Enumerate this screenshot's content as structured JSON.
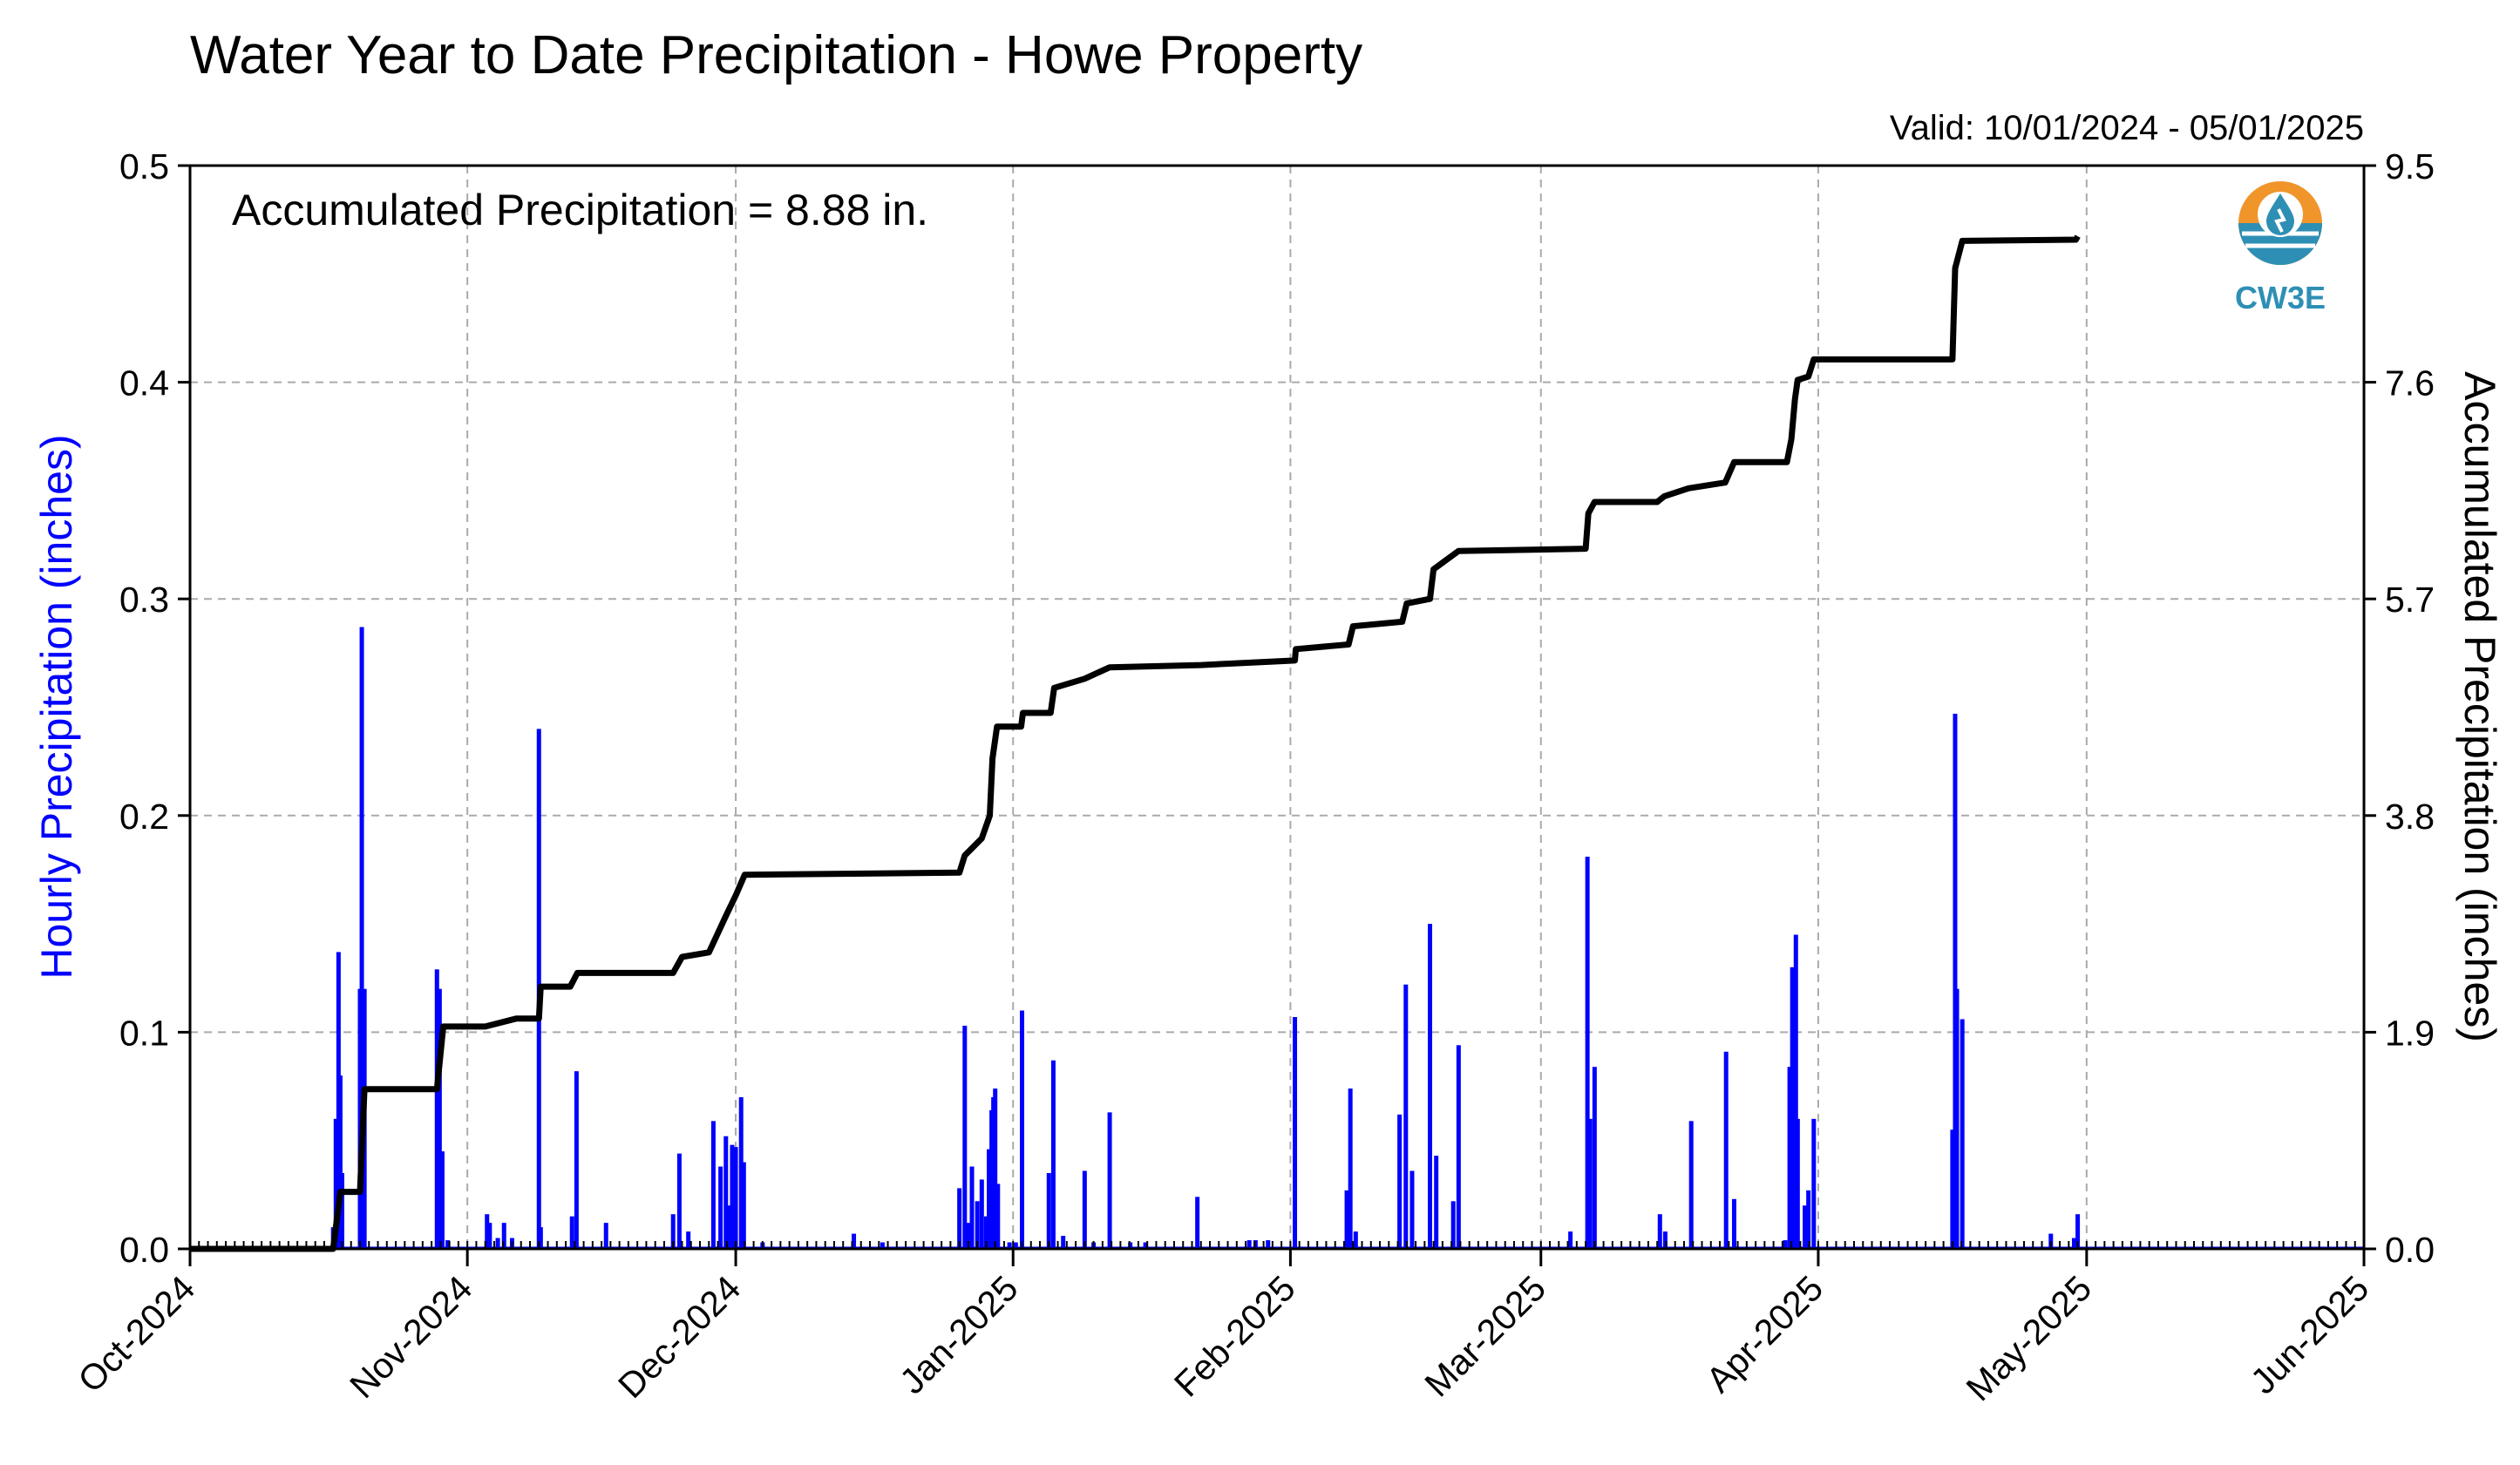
{
  "chart_data": {
    "type": "bar+line",
    "title": "Water Year to Date Precipitation - Howe Property",
    "valid_label": "Valid: 10/01/2024 - 05/01/2025",
    "annotation": "Accumulated Precipitation = 8.88 in.",
    "ylabel_left": "Hourly Precipitation (inches)",
    "ylabel_right": "Accumulated Precipitation (inches)",
    "left_ylim": [
      0,
      0.5
    ],
    "right_ylim": [
      0,
      9.5
    ],
    "left_ticks": [
      "0.0",
      "0.1",
      "0.2",
      "0.3",
      "0.4",
      "0.5"
    ],
    "right_ticks": [
      "0.0",
      "1.9",
      "3.8",
      "5.7",
      "7.6",
      "9.5"
    ],
    "x_ticks": [
      "Oct-2024",
      "Nov-2024",
      "Dec-2024",
      "Jan-2025",
      "Feb-2025",
      "Mar-2025",
      "Apr-2025",
      "May-2025",
      "Jun-2025"
    ],
    "xlim": [
      "2024-10-01",
      "2025-06-01"
    ],
    "grid": true,
    "colors": {
      "hourly": "#0000ff",
      "accumulated": "#000000",
      "grid": "#aaaaaa"
    },
    "hourly": [
      {
        "date": "2024-10-17.0",
        "value": 0.01
      },
      {
        "date": "2024-10-17.3",
        "value": 0.06
      },
      {
        "date": "2024-10-17.6",
        "value": 0.137
      },
      {
        "date": "2024-10-17.8",
        "value": 0.08
      },
      {
        "date": "2024-10-18.0",
        "value": 0.035
      },
      {
        "date": "2024-10-20.0",
        "value": 0.12
      },
      {
        "date": "2024-10-20.2",
        "value": 0.287
      },
      {
        "date": "2024-10-20.5",
        "value": 0.12
      },
      {
        "date": "2024-10-28.6",
        "value": 0.129
      },
      {
        "date": "2024-10-28.9",
        "value": 0.12
      },
      {
        "date": "2024-10-29.2",
        "value": 0.045
      },
      {
        "date": "2024-10-29.8",
        "value": 0.004
      },
      {
        "date": "2024-11-03.2",
        "value": 0.016
      },
      {
        "date": "2024-11-03.5",
        "value": 0.012
      },
      {
        "date": "2024-11-04.4",
        "value": 0.005
      },
      {
        "date": "2024-11-05.1",
        "value": 0.012
      },
      {
        "date": "2024-11-06.0",
        "value": 0.005
      },
      {
        "date": "2024-11-09.0",
        "value": 0.24
      },
      {
        "date": "2024-11-09.2",
        "value": 0.01
      },
      {
        "date": "2024-11-12.7",
        "value": 0.015
      },
      {
        "date": "2024-11-13.2",
        "value": 0.082
      },
      {
        "date": "2024-11-16.5",
        "value": 0.012
      },
      {
        "date": "2024-11-24.0",
        "value": 0.016
      },
      {
        "date": "2024-11-24.7",
        "value": 0.044
      },
      {
        "date": "2024-11-25.7",
        "value": 0.008
      },
      {
        "date": "2024-11-28.5",
        "value": 0.059
      },
      {
        "date": "2024-11-29.3",
        "value": 0.038
      },
      {
        "date": "2024-11-29.9",
        "value": 0.052
      },
      {
        "date": "2024-11-30.2",
        "value": 0.02
      },
      {
        "date": "2024-11-30.6",
        "value": 0.048
      },
      {
        "date": "2024-12-01.0",
        "value": 0.047
      },
      {
        "date": "2024-12-01.6",
        "value": 0.07
      },
      {
        "date": "2024-12-01.9",
        "value": 0.04
      },
      {
        "date": "2024-12-04.0",
        "value": 0.003
      },
      {
        "date": "2024-12-14.2",
        "value": 0.007
      },
      {
        "date": "2024-12-17.4",
        "value": 0.003
      },
      {
        "date": "2024-12-26.0",
        "value": 0.028
      },
      {
        "date": "2024-12-26.6",
        "value": 0.103
      },
      {
        "date": "2024-12-27.0",
        "value": 0.012
      },
      {
        "date": "2024-12-27.4",
        "value": 0.038
      },
      {
        "date": "2024-12-28.0",
        "value": 0.022
      },
      {
        "date": "2024-12-28.5",
        "value": 0.032
      },
      {
        "date": "2024-12-29.0",
        "value": 0.015
      },
      {
        "date": "2024-12-29.3",
        "value": 0.046
      },
      {
        "date": "2024-12-29.6",
        "value": 0.064
      },
      {
        "date": "2024-12-29.8",
        "value": 0.07
      },
      {
        "date": "2024-12-30.0",
        "value": 0.074
      },
      {
        "date": "2024-12-30.3",
        "value": 0.03
      },
      {
        "date": "2024-12-31.6",
        "value": 0.003
      },
      {
        "date": "2025-01-01.3",
        "value": 0.003
      },
      {
        "date": "2025-01-02.0",
        "value": 0.11
      },
      {
        "date": "2025-01-05.0",
        "value": 0.035
      },
      {
        "date": "2025-01-05.5",
        "value": 0.087
      },
      {
        "date": "2025-01-06.6",
        "value": 0.006
      },
      {
        "date": "2025-01-09.0",
        "value": 0.036
      },
      {
        "date": "2025-01-10.0",
        "value": 0.003
      },
      {
        "date": "2025-01-11.8",
        "value": 0.063
      },
      {
        "date": "2025-01-14.1",
        "value": 0.003
      },
      {
        "date": "2025-01-15.8",
        "value": 0.003
      },
      {
        "date": "2025-01-21.6",
        "value": 0.024
      },
      {
        "date": "2025-01-27.4",
        "value": 0.004
      },
      {
        "date": "2025-01-28.1",
        "value": 0.004
      },
      {
        "date": "2025-01-29.5",
        "value": 0.004
      },
      {
        "date": "2025-02-01.5",
        "value": 0.107
      },
      {
        "date": "2025-02-07.3",
        "value": 0.027
      },
      {
        "date": "2025-02-07.7",
        "value": 0.074
      },
      {
        "date": "2025-02-08.3",
        "value": 0.008
      },
      {
        "date": "2025-02-13.2",
        "value": 0.062
      },
      {
        "date": "2025-02-13.9",
        "value": 0.122
      },
      {
        "date": "2025-02-14.6",
        "value": 0.036
      },
      {
        "date": "2025-02-16.6",
        "value": 0.15
      },
      {
        "date": "2025-02-17.3",
        "value": 0.043
      },
      {
        "date": "2025-02-19.2",
        "value": 0.022
      },
      {
        "date": "2025-02-19.8",
        "value": 0.094
      },
      {
        "date": "2025-03-04.3",
        "value": 0.008
      },
      {
        "date": "2025-03-06.2",
        "value": 0.181
      },
      {
        "date": "2025-03-06.5",
        "value": 0.06
      },
      {
        "date": "2025-03-07.0",
        "value": 0.084
      },
      {
        "date": "2025-03-14.3",
        "value": 0.016
      },
      {
        "date": "2025-03-14.9",
        "value": 0.008
      },
      {
        "date": "2025-03-17.8",
        "value": 0.059
      },
      {
        "date": "2025-03-21.7",
        "value": 0.091
      },
      {
        "date": "2025-03-22.6",
        "value": 0.023
      },
      {
        "date": "2025-03-28.3",
        "value": 0.004
      },
      {
        "date": "2025-03-28.8",
        "value": 0.084
      },
      {
        "date": "2025-03-29.1",
        "value": 0.13
      },
      {
        "date": "2025-03-29.3",
        "value": 0.1
      },
      {
        "date": "2025-03-29.5",
        "value": 0.145
      },
      {
        "date": "2025-03-29.7",
        "value": 0.06
      },
      {
        "date": "2025-03-30.5",
        "value": 0.02
      },
      {
        "date": "2025-03-30.9",
        "value": 0.027
      },
      {
        "date": "2025-03-31.5",
        "value": 0.06
      },
      {
        "date": "2025-04-16.0",
        "value": 0.055
      },
      {
        "date": "2025-04-16.3",
        "value": 0.247
      },
      {
        "date": "2025-04-16.5",
        "value": 0.12
      },
      {
        "date": "2025-04-17.1",
        "value": 0.106
      },
      {
        "date": "2025-04-27.0",
        "value": 0.007
      },
      {
        "date": "2025-04-29.6",
        "value": 0.005
      },
      {
        "date": "2025-04-30.0",
        "value": 0.016
      }
    ],
    "accumulated": [
      {
        "date": "2024-10-01.0",
        "value": 0.0
      },
      {
        "date": "2024-10-17.0",
        "value": 0.0
      },
      {
        "date": "2024-10-17.8",
        "value": 0.5
      },
      {
        "date": "2024-10-20.0",
        "value": 0.5
      },
      {
        "date": "2024-10-20.5",
        "value": 1.4
      },
      {
        "date": "2024-10-28.6",
        "value": 1.4
      },
      {
        "date": "2024-10-29.3",
        "value": 1.95
      },
      {
        "date": "2024-11-03.0",
        "value": 1.95
      },
      {
        "date": "2024-11-06.5",
        "value": 2.02
      },
      {
        "date": "2024-11-09.0",
        "value": 2.02
      },
      {
        "date": "2024-11-09.2",
        "value": 2.3
      },
      {
        "date": "2024-11-12.5",
        "value": 2.3
      },
      {
        "date": "2024-11-13.3",
        "value": 2.42
      },
      {
        "date": "2024-11-24.0",
        "value": 2.42
      },
      {
        "date": "2024-11-25.0",
        "value": 2.56
      },
      {
        "date": "2024-11-28.0",
        "value": 2.6
      },
      {
        "date": "2024-11-29.9",
        "value": 2.92
      },
      {
        "date": "2024-12-01.0",
        "value": 3.1
      },
      {
        "date": "2024-12-02.0",
        "value": 3.28
      },
      {
        "date": "2024-12-26.0",
        "value": 3.3
      },
      {
        "date": "2024-12-26.6",
        "value": 3.45
      },
      {
        "date": "2024-12-28.5",
        "value": 3.6
      },
      {
        "date": "2024-12-29.4",
        "value": 3.8
      },
      {
        "date": "2024-12-29.7",
        "value": 4.3
      },
      {
        "date": "2024-12-30.2",
        "value": 4.58
      },
      {
        "date": "2025-01-01.9",
        "value": 4.58
      },
      {
        "date": "2025-01-02.1",
        "value": 4.7
      },
      {
        "date": "2025-01-05.2",
        "value": 4.7
      },
      {
        "date": "2025-01-05.6",
        "value": 4.92
      },
      {
        "date": "2025-01-09.0",
        "value": 5.0
      },
      {
        "date": "2025-01-11.8",
        "value": 5.1
      },
      {
        "date": "2025-01-22.0",
        "value": 5.12
      },
      {
        "date": "2025-02-01.5",
        "value": 5.16
      },
      {
        "date": "2025-02-01.6",
        "value": 5.26
      },
      {
        "date": "2025-02-07.5",
        "value": 5.3
      },
      {
        "date": "2025-02-08.0",
        "value": 5.46
      },
      {
        "date": "2025-02-13.5",
        "value": 5.5
      },
      {
        "date": "2025-02-14.0",
        "value": 5.66
      },
      {
        "date": "2025-02-16.6",
        "value": 5.7
      },
      {
        "date": "2025-02-17.0",
        "value": 5.96
      },
      {
        "date": "2025-02-19.8",
        "value": 6.12
      },
      {
        "date": "2025-03-06.0",
        "value": 6.14
      },
      {
        "date": "2025-03-06.3",
        "value": 6.45
      },
      {
        "date": "2025-03-07.0",
        "value": 6.55
      },
      {
        "date": "2025-03-14.0",
        "value": 6.55
      },
      {
        "date": "2025-03-14.8",
        "value": 6.6
      },
      {
        "date": "2025-03-17.5",
        "value": 6.67
      },
      {
        "date": "2025-03-21.6",
        "value": 6.72
      },
      {
        "date": "2025-03-22.6",
        "value": 6.9
      },
      {
        "date": "2025-03-28.5",
        "value": 6.9
      },
      {
        "date": "2025-03-29.0",
        "value": 7.1
      },
      {
        "date": "2025-03-29.4",
        "value": 7.45
      },
      {
        "date": "2025-03-29.7",
        "value": 7.62
      },
      {
        "date": "2025-03-30.9",
        "value": 7.65
      },
      {
        "date": "2025-03-31.5",
        "value": 7.8
      },
      {
        "date": "2025-04-16.0",
        "value": 7.8
      },
      {
        "date": "2025-04-16.3",
        "value": 8.6
      },
      {
        "date": "2025-04-17.1",
        "value": 8.84
      },
      {
        "date": "2025-04-29.8",
        "value": 8.85
      },
      {
        "date": "2025-04-30.0",
        "value": 8.88
      }
    ]
  },
  "logo": {
    "label": "CW3E"
  }
}
